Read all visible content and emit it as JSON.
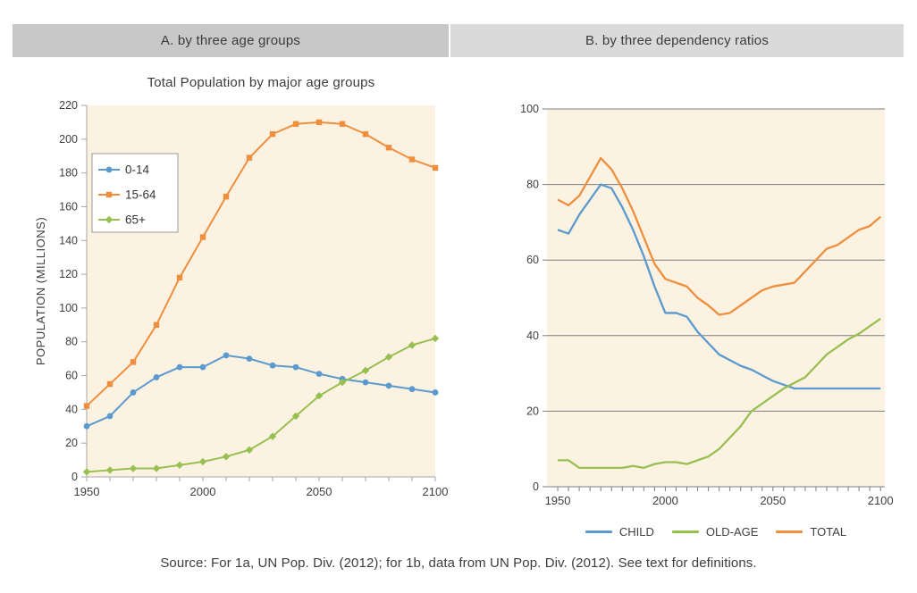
{
  "header": {
    "tab_a": "A. by three age groups",
    "tab_b": "B. by three dependency ratios"
  },
  "panel_a": {
    "title": "Total Population by major age groups",
    "ylabel": "POPULATION (MILLIONS)"
  },
  "footer": {
    "source": "Source: For 1a, UN Pop. Div. (2012); for 1b, data from UN Pop. Div. (2012). See text for definitions."
  },
  "colors": {
    "plot_bg": "#fcf2e2",
    "axis": "#a6a6a6",
    "grid": "#7e7e7e",
    "text": "#3e3e3e",
    "blue": "#5b9ace",
    "orange": "#ee8f3e",
    "green": "#97c051",
    "tab_a_bg": "#c8c8c8",
    "tab_b_bg": "#dadada"
  },
  "chart_data": [
    {
      "type": "line",
      "title": "Total Population by major age groups",
      "ylabel": "POPULATION (MILLIONS)",
      "xlabel": "",
      "ylim": [
        0,
        220
      ],
      "ytick_step": 20,
      "xticks": [
        1950,
        2000,
        2050,
        2100
      ],
      "x_minor_step": 10,
      "grid": false,
      "legend_position": "upper-left-box",
      "x": [
        1950,
        1960,
        1970,
        1980,
        1990,
        2000,
        2010,
        2020,
        2030,
        2040,
        2050,
        2060,
        2070,
        2080,
        2090,
        2100
      ],
      "series": [
        {
          "name": "0-14",
          "color": "#5b9ace",
          "marker": "circle",
          "values": [
            30,
            36,
            50,
            59,
            65,
            65,
            72,
            70,
            66,
            65,
            61,
            58,
            56,
            54,
            52,
            50
          ]
        },
        {
          "name": "15-64",
          "color": "#ee8f3e",
          "marker": "square",
          "values": [
            42,
            55,
            68,
            90,
            118,
            142,
            166,
            189,
            203,
            209,
            210,
            209,
            203,
            195,
            188,
            183
          ]
        },
        {
          "name": "65+",
          "color": "#97c051",
          "marker": "diamond",
          "values": [
            3,
            4,
            5,
            5,
            7,
            9,
            12,
            16,
            24,
            36,
            48,
            56,
            63,
            71,
            78,
            82
          ]
        }
      ]
    },
    {
      "type": "line",
      "title": "",
      "ylabel": "",
      "xlabel": "",
      "ylim": [
        0,
        100
      ],
      "ytick_step": 20,
      "xticks": [
        1950,
        2000,
        2050,
        2100
      ],
      "x_minor_step": 5,
      "grid": true,
      "legend_position": "bottom",
      "x": [
        1950,
        1955,
        1960,
        1965,
        1970,
        1975,
        1980,
        1985,
        1990,
        1995,
        2000,
        2005,
        2010,
        2015,
        2020,
        2025,
        2030,
        2035,
        2040,
        2045,
        2050,
        2055,
        2060,
        2065,
        2070,
        2075,
        2080,
        2085,
        2090,
        2095,
        2100
      ],
      "series": [
        {
          "name": "CHILD",
          "color": "#5b9ace",
          "values": [
            68,
            67,
            72,
            76,
            80,
            79,
            74,
            68,
            61,
            53,
            46,
            46,
            45,
            41,
            38,
            35,
            33.5,
            32,
            31,
            29.5,
            28,
            27,
            26,
            26,
            26,
            26,
            26,
            26,
            26,
            26,
            26
          ]
        },
        {
          "name": "OLD-AGE",
          "color": "#97c051",
          "values": [
            7,
            7,
            5,
            5,
            5,
            5,
            5,
            5.5,
            5,
            6,
            6.5,
            6.5,
            6,
            7,
            8,
            10,
            13,
            16,
            20,
            22,
            24,
            26,
            27.5,
            29,
            32,
            35,
            37,
            39,
            40.5,
            42.5,
            44.5
          ]
        },
        {
          "name": "TOTAL",
          "color": "#ee8f3e",
          "values": [
            76,
            74.5,
            77,
            82,
            87,
            84,
            79,
            73,
            66,
            59,
            55,
            54,
            53,
            50,
            48,
            45.5,
            46,
            48,
            50,
            52,
            53,
            53.5,
            54,
            57,
            60,
            63,
            64,
            66,
            68,
            69,
            71.5
          ]
        }
      ]
    }
  ]
}
